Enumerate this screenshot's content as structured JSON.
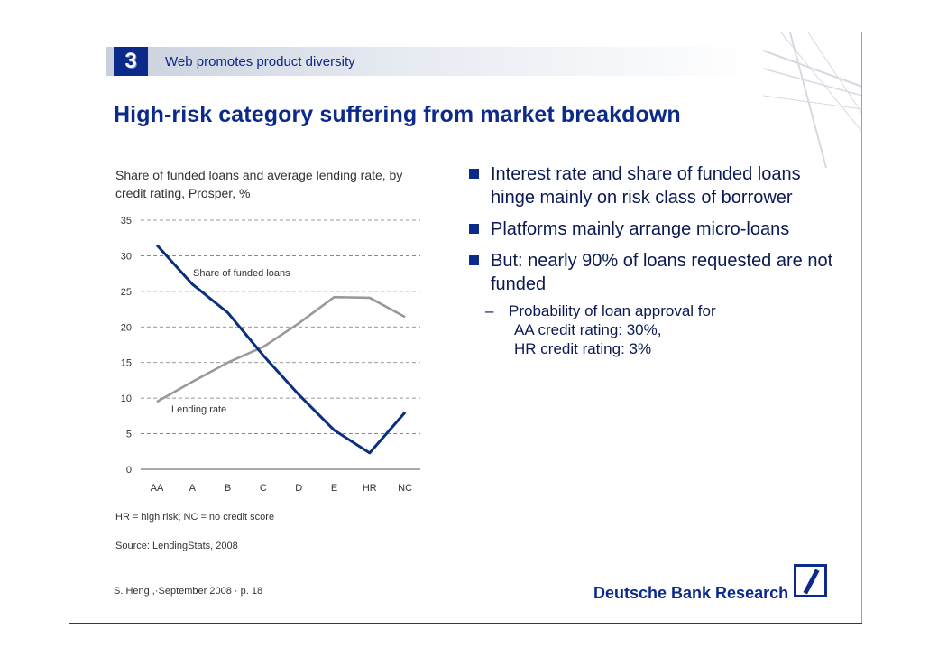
{
  "header": {
    "section_number": "3",
    "section_title": "Web promotes product diversity"
  },
  "headline": "High-risk category suffering from market breakdown",
  "chart_caption": "Share of funded loans and average lending rate, by credit rating, Prosper, %",
  "chart_data": {
    "type": "line",
    "title": "Share of funded loans and average lending rate, by credit rating, Prosper, %",
    "categories": [
      "AA",
      "A",
      "B",
      "C",
      "D",
      "E",
      "HR",
      "NC"
    ],
    "yticks": [
      "0",
      "5",
      "10",
      "15",
      "20",
      "25",
      "30",
      "35"
    ],
    "ylim": [
      0,
      35
    ],
    "grid": true,
    "series": [
      {
        "name": "Share of funded loans",
        "color": "#0b2f7f",
        "values": [
          31.5,
          26,
          22,
          16,
          10.5,
          5.5,
          2.3,
          8
        ]
      },
      {
        "name": "Lending rate",
        "color": "#999999",
        "values": [
          9.5,
          12.3,
          15,
          17.2,
          20.5,
          24.2,
          24.1,
          21.4
        ]
      }
    ],
    "xlabel": "",
    "ylabel": ""
  },
  "note": "HR = high risk; NC = no credit score",
  "source": "Source: LendingStats, 2008",
  "bullets": [
    "Interest rate and share of funded loans hinge mainly on risk class of borrower",
    "Platforms mainly arrange micro-loans",
    "But: nearly 90% of loans requested are not funded"
  ],
  "sub_bullet": {
    "dash": "–",
    "lines": [
      "Probability of loan approval for",
      "AA credit rating: 30%,",
      "HR credit rating: 3%"
    ]
  },
  "footer": "S. Heng ,·September 2008 ·  p. 18",
  "brand": "Deutsche Bank Research",
  "colors": {
    "accent": "#0b2a8a"
  }
}
